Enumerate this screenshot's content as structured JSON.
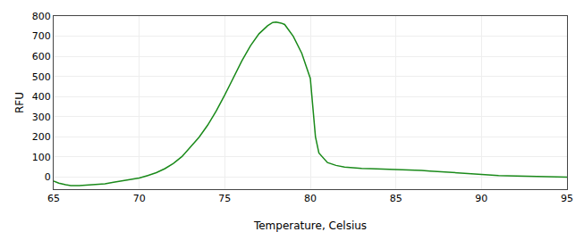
{
  "chart_data": {
    "type": "line",
    "xlabel": "Temperature, Celsius",
    "ylabel": "RFU",
    "x": [
      65.0,
      65.3,
      65.7,
      66.0,
      66.5,
      67.0,
      67.5,
      68.0,
      68.5,
      69.0,
      69.5,
      70.0,
      70.5,
      71.0,
      71.5,
      72.0,
      72.5,
      73.0,
      73.5,
      74.0,
      74.5,
      75.0,
      75.5,
      76.0,
      76.5,
      77.0,
      77.5,
      77.8,
      78.0,
      78.3,
      78.5,
      79.0,
      79.5,
      80.0,
      80.3,
      80.5,
      81.0,
      81.5,
      82.0,
      82.5,
      83.0,
      83.5,
      84.0,
      84.5,
      85.0,
      85.5,
      86.0,
      86.5,
      87.0,
      87.5,
      88.0,
      88.5,
      89.0,
      89.5,
      90.0,
      90.5,
      91.0,
      91.5,
      92.0,
      92.5,
      93.0,
      93.5,
      94.0,
      94.5,
      95.0
    ],
    "values": [
      -20,
      -30,
      -38,
      -42,
      -42,
      -40,
      -37,
      -33,
      -26,
      -19,
      -12,
      -5,
      8,
      22,
      42,
      68,
      102,
      148,
      198,
      258,
      328,
      408,
      492,
      578,
      652,
      712,
      752,
      768,
      770,
      765,
      758,
      700,
      615,
      490,
      200,
      120,
      72,
      58,
      50,
      45,
      43,
      42,
      41,
      40,
      39,
      37,
      35,
      33,
      30,
      27,
      24,
      20,
      17,
      14,
      12,
      10,
      8,
      7,
      6,
      5,
      4,
      3,
      2,
      1,
      0
    ],
    "color": "#1a8a1a",
    "xlim": [
      65,
      95
    ],
    "ylim": [
      -60,
      800
    ],
    "xticks": [
      65,
      70,
      75,
      80,
      85,
      90,
      95
    ],
    "yticks": [
      0,
      100,
      200,
      300,
      400,
      500,
      600,
      700,
      800
    ],
    "grid": true
  }
}
